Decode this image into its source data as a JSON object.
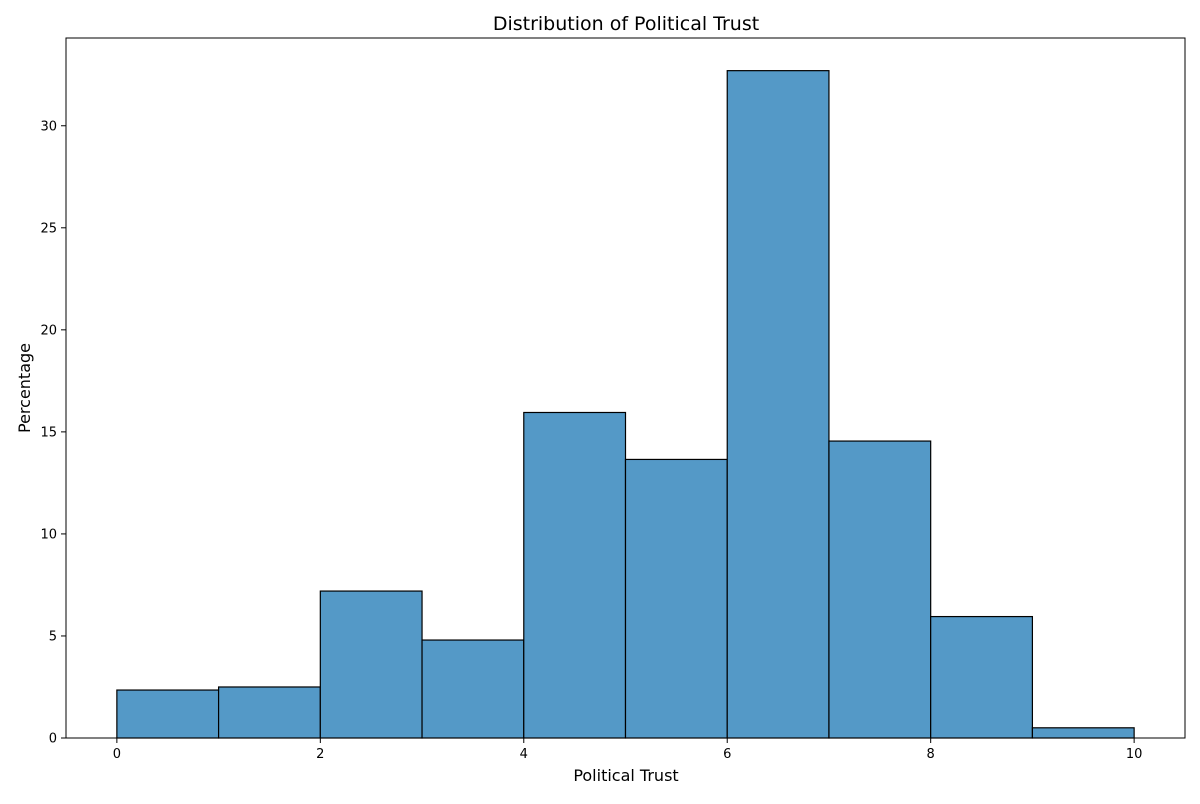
{
  "chart_data": {
    "type": "bar",
    "title": "Distribution of Political Trust",
    "xlabel": "Political Trust",
    "ylabel": "Percentage",
    "bins": [
      {
        "x0": 0,
        "x1": 1,
        "value": 2.35
      },
      {
        "x0": 1,
        "x1": 2,
        "value": 2.5
      },
      {
        "x0": 2,
        "x1": 3,
        "value": 7.2
      },
      {
        "x0": 3,
        "x1": 4,
        "value": 4.8
      },
      {
        "x0": 4,
        "x1": 5,
        "value": 15.95
      },
      {
        "x0": 5,
        "x1": 6,
        "value": 13.65
      },
      {
        "x0": 6,
        "x1": 7,
        "value": 32.7
      },
      {
        "x0": 7,
        "x1": 8,
        "value": 14.55
      },
      {
        "x0": 8,
        "x1": 9,
        "value": 5.95
      },
      {
        "x0": 9,
        "x1": 10,
        "value": 0.5
      }
    ],
    "xlim": [
      -0.5,
      10.5
    ],
    "ylim": [
      0,
      34.3
    ],
    "xticks": [
      0,
      2,
      4,
      6,
      8,
      10
    ],
    "yticks": [
      0,
      5,
      10,
      15,
      20,
      25,
      30
    ],
    "grid": false,
    "colors": {
      "bar_fill": "#5499c7",
      "bar_edge": "#000000"
    }
  }
}
